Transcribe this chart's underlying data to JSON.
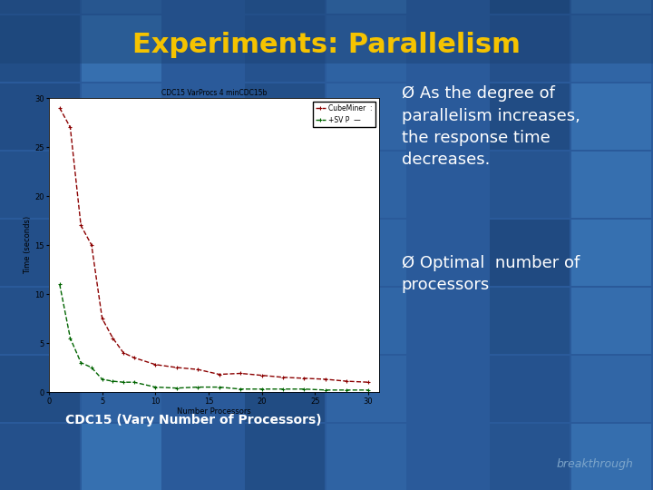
{
  "title": "Experiments: Parallelism",
  "title_color": "#F5C300",
  "bg_dark": "#1a4070",
  "bg_mid": "#2a5a9a",
  "bg_light": "#4080c0",
  "chart_title": "CDC15 VarProcs 4 minCDC15b",
  "xlabel": "Number Processors",
  "ylabel": "Time (seconds)",
  "xlim": [
    0,
    31
  ],
  "ylim": [
    0,
    30
  ],
  "xticks": [
    0,
    5,
    10,
    15,
    20,
    25,
    30
  ],
  "yticks": [
    0,
    5,
    10,
    15,
    20,
    25,
    30
  ],
  "red_x": [
    1,
    2,
    3,
    4,
    5,
    6,
    7,
    8,
    10,
    12,
    14,
    16,
    18,
    20,
    22,
    24,
    26,
    28,
    30
  ],
  "red_y": [
    29,
    27,
    17,
    15,
    7.5,
    5.5,
    4.0,
    3.5,
    2.8,
    2.5,
    2.3,
    1.8,
    1.9,
    1.7,
    1.5,
    1.4,
    1.3,
    1.1,
    1.0
  ],
  "green_x": [
    1,
    2,
    3,
    4,
    5,
    6,
    7,
    8,
    10,
    12,
    14,
    16,
    18,
    20,
    22,
    24,
    26,
    28,
    30
  ],
  "green_y": [
    11,
    5.5,
    3.0,
    2.5,
    1.3,
    1.1,
    1.0,
    1.0,
    0.5,
    0.4,
    0.5,
    0.5,
    0.3,
    0.3,
    0.3,
    0.3,
    0.2,
    0.2,
    0.2
  ],
  "red_label": "CubeMiner  :",
  "green_label": "+SV P  —",
  "bullet1_arrow": "Ø",
  "bullet1_text": " As the degree of\nparallelism increases,\nthe response time\ndecreases.",
  "bullet2_arrow": "Ø",
  "bullet2_text": " Optimal  number of\nprocessors",
  "caption": "CDC15 (Vary Number of Processors)",
  "text_color": "#FFFFFF",
  "caption_color": "#FFFFFF",
  "watermark": "breakthrough",
  "watermark_color": "#8ab0d0"
}
